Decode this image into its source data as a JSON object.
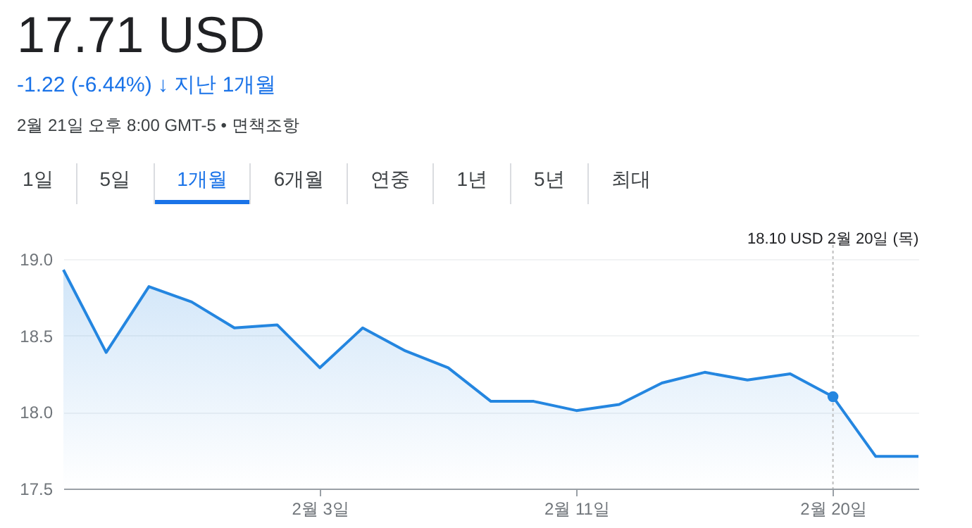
{
  "chart_data": {
    "type": "area",
    "title": "17.71 USD",
    "subtitle": "-1.22 (-6.44%) ↓ 지난 1개월",
    "annotations": [
      "2월 21일 오후 8:00 GMT-5 • 면책조항",
      "1일",
      "5일",
      "1개월",
      "6개월",
      "연중",
      "1년",
      "5년",
      "최대",
      "18.10 USD  2월 20일 (목)"
    ],
    "categories": [
      null,
      null,
      null,
      null,
      null,
      null,
      "2월 3일",
      null,
      null,
      null,
      null,
      null,
      "2월 11일",
      null,
      null,
      null,
      null,
      null,
      "2월 20일",
      null,
      null
    ],
    "series": [
      {
        "color": "#2486e0",
        "values": [
          18.93,
          18.39,
          18.82,
          18.72,
          18.55,
          18.57,
          18.29,
          18.55,
          18.4,
          18.29,
          18.07,
          18.07,
          18.01,
          18.05,
          18.19,
          18.26,
          18.21,
          18.25,
          18.1,
          17.71,
          17.71
        ]
      }
    ],
    "ylim": [
      17.5,
      19.0
    ],
    "yticks": [
      17.5,
      {
        "value": 18,
        "label": "18.0"
      },
      18.5,
      {
        "value": 19,
        "label": "19.0"
      }
    ],
    "grid": "y",
    "ref_lines": [
      {
        "axis": "x",
        "value": "2월 20일",
        "line_style": "dotted",
        "color": "#bdbdbd"
      }
    ]
  }
}
